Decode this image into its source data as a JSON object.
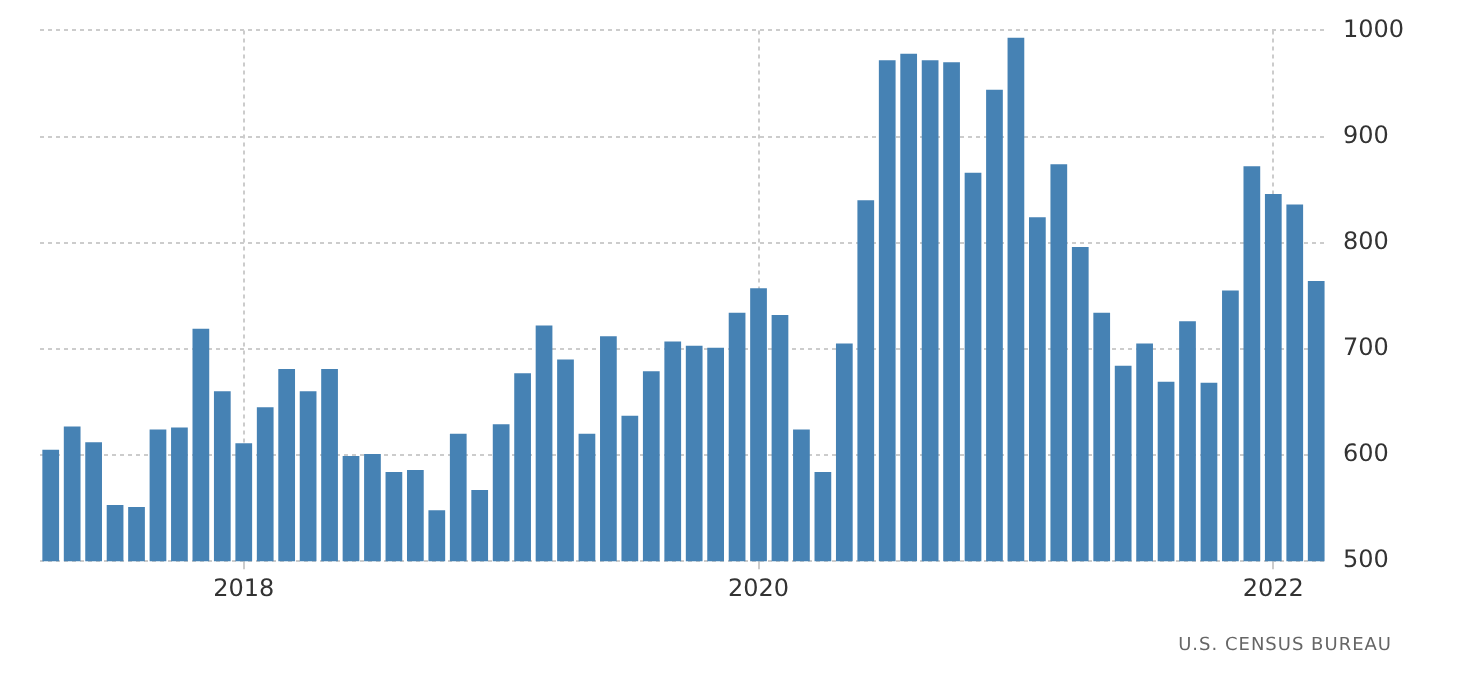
{
  "chart_data": {
    "type": "bar",
    "categories": [
      null,
      null,
      null,
      null,
      null,
      null,
      null,
      null,
      null,
      "2018",
      null,
      null,
      null,
      null,
      null,
      null,
      null,
      null,
      null,
      null,
      null,
      null,
      null,
      null,
      null,
      null,
      null,
      null,
      null,
      null,
      null,
      null,
      null,
      "2020",
      null,
      null,
      null,
      null,
      null,
      null,
      null,
      null,
      null,
      null,
      null,
      null,
      null,
      null,
      null,
      null,
      null,
      null,
      null,
      null,
      null,
      null,
      null,
      "2022",
      null,
      null
    ],
    "series": [
      {
        "color": "#4682b4",
        "values": [
          605,
          627,
          612,
          553,
          551,
          624,
          626,
          719,
          660,
          611,
          645,
          681,
          660,
          681,
          599,
          601,
          584,
          586,
          548,
          620,
          567,
          629,
          677,
          722,
          690,
          620,
          712,
          637,
          679,
          707,
          703,
          701,
          734,
          757,
          732,
          624,
          584,
          705,
          840,
          972,
          978,
          972,
          970,
          866,
          944,
          993,
          824,
          874,
          796,
          734,
          684,
          705,
          669,
          726,
          668,
          755,
          872,
          846,
          836,
          764
        ]
      }
    ],
    "ylim": [
      500,
      1000
    ],
    "yticks": [
      500,
      600,
      700,
      800,
      900,
      1000
    ],
    "grid": true,
    "legend": false,
    "annotations": [
      "U.S. CENSUS BUREAU"
    ]
  }
}
